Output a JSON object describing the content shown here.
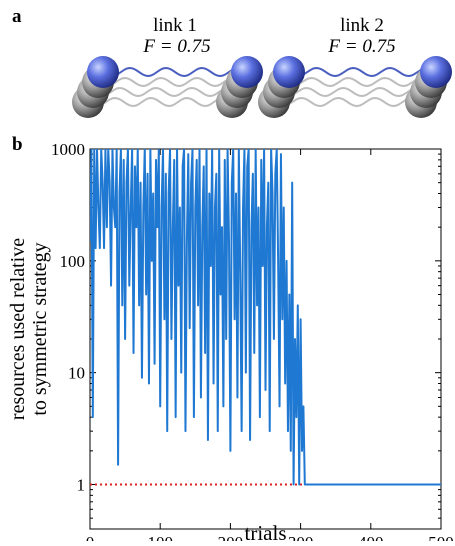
{
  "panel_labels": [
    "a",
    "b"
  ],
  "diagram": {
    "links": [
      {
        "label": "link 1",
        "fidelity": "F = 0.75"
      },
      {
        "label": "link 2",
        "fidelity": "F = 0.75"
      }
    ]
  },
  "chart_data": {
    "type": "line",
    "xlabel": "trials",
    "ylabel": [
      "resources used relative",
      "to symmetric strategy"
    ],
    "x": [
      0,
      2,
      4,
      6,
      8,
      10,
      12,
      14,
      16,
      18,
      20,
      22,
      24,
      26,
      28,
      30,
      32,
      34,
      36,
      38,
      40,
      42,
      44,
      46,
      48,
      50,
      52,
      54,
      56,
      58,
      60,
      62,
      64,
      66,
      68,
      70,
      72,
      74,
      76,
      78,
      80,
      82,
      84,
      86,
      88,
      90,
      92,
      94,
      96,
      98,
      100,
      102,
      104,
      106,
      108,
      110,
      112,
      114,
      116,
      118,
      120,
      122,
      124,
      126,
      128,
      130,
      132,
      134,
      136,
      138,
      140,
      142,
      144,
      146,
      148,
      150,
      152,
      154,
      156,
      158,
      160,
      162,
      164,
      166,
      168,
      170,
      172,
      174,
      176,
      178,
      180,
      182,
      184,
      186,
      188,
      190,
      192,
      194,
      196,
      198,
      200,
      202,
      204,
      206,
      208,
      210,
      212,
      214,
      216,
      218,
      220,
      222,
      224,
      226,
      228,
      230,
      232,
      234,
      236,
      238,
      240,
      242,
      244,
      246,
      248,
      250,
      252,
      254,
      256,
      258,
      260,
      262,
      264,
      266,
      268,
      270,
      272,
      274,
      276,
      278,
      280,
      282,
      284,
      286,
      288,
      290,
      292,
      294,
      296,
      298,
      300,
      302,
      304,
      306,
      308,
      310,
      500
    ],
    "values": [
      150,
      1000,
      4,
      1000,
      130,
      1000,
      300,
      130,
      1000,
      500,
      130,
      1000,
      200,
      1000,
      500,
      60,
      1000,
      300,
      200,
      1000,
      1.5,
      400,
      1000,
      40,
      800,
      20,
      500,
      1000,
      60,
      300,
      1000,
      15,
      700,
      200,
      1000,
      40,
      500,
      9,
      300,
      1000,
      50,
      600,
      8,
      1000,
      100,
      400,
      12,
      800,
      200,
      1000,
      5,
      300,
      1000,
      30,
      600,
      3,
      400,
      1000,
      20,
      200,
      800,
      4,
      1000,
      60,
      300,
      10,
      700,
      1000,
      3,
      150,
      900,
      25,
      500,
      1000,
      4,
      300,
      800,
      40,
      1000,
      6,
      200,
      700,
      15,
      1000,
      2.5,
      400,
      90,
      1000,
      8,
      300,
      600,
      3,
      1000,
      50,
      200,
      5,
      800,
      20,
      1000,
      150,
      2,
      500,
      1000,
      30,
      400,
      6,
      1000,
      80,
      3,
      300,
      1000,
      10,
      700,
      1000,
      2.5,
      200,
      600,
      15,
      1000,
      40,
      300,
      4,
      800,
      90,
      1000,
      7,
      200,
      500,
      3,
      1000,
      400,
      20,
      600,
      1000,
      100,
      5,
      900,
      30,
      300,
      8,
      100,
      3,
      50,
      2,
      500,
      1,
      20,
      4,
      40,
      1,
      30,
      2,
      5,
      1,
      1,
      1,
      1
    ],
    "color": "#1f78d1",
    "hline": {
      "value": 1,
      "color": "#e0201c"
    },
    "xlim": [
      0,
      500
    ],
    "xticks": [
      0,
      100,
      200,
      300,
      400,
      500
    ],
    "ylim": [
      0.4,
      1000
    ],
    "yticks": [
      1,
      10,
      100,
      1000
    ],
    "log_y": true
  }
}
